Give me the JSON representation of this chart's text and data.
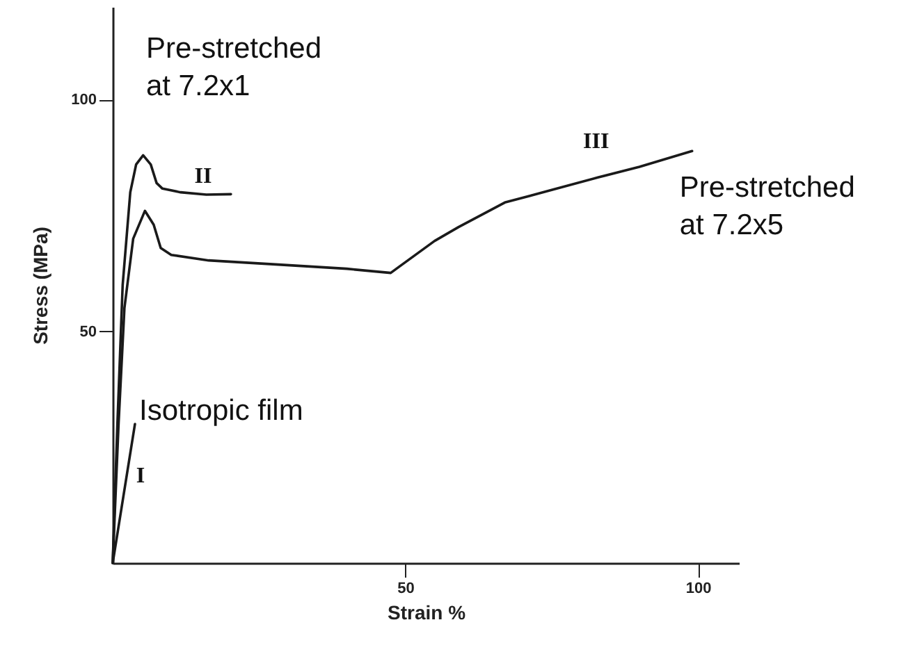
{
  "chart_data": {
    "type": "line",
    "xlabel": "Strain %",
    "ylabel": "Stress (MPa)",
    "xlim": [
      0,
      107
    ],
    "ylim": [
      0,
      120
    ],
    "xticks": [
      50,
      100
    ],
    "yticks": [
      50,
      100
    ],
    "grid": false,
    "marker": "none",
    "line_style": "solid",
    "series": [
      {
        "name": "I",
        "color": "#1a1a1a",
        "x": [
          0,
          3.8
        ],
        "values": [
          0,
          30
        ]
      },
      {
        "name": "II",
        "color": "#1a1a1a",
        "x": [
          0,
          0.8,
          1.7,
          3,
          4,
          5.2,
          6.5,
          7.5,
          8.5,
          11.6,
          16,
          20.2
        ],
        "values": [
          0,
          30,
          60,
          80,
          86,
          88,
          86,
          82,
          80.8,
          80,
          79.5,
          79.6
        ]
      },
      {
        "name": "III",
        "color": "#1a1a1a",
        "x": [
          0,
          1,
          2,
          3.5,
          5.5,
          7,
          8.2,
          10,
          16.4,
          28.3,
          40,
          47.5,
          49,
          55,
          59.1,
          67,
          75,
          82.9,
          90,
          99
        ],
        "values": [
          0,
          30,
          55,
          70,
          76,
          73,
          68,
          66.5,
          65.3,
          64.4,
          63.5,
          62.6,
          64,
          69.5,
          72.5,
          77.8,
          80.5,
          83.2,
          85.5,
          88.9
        ]
      }
    ],
    "annotations": [
      "Isotropic film",
      "Pre-stretched\nat 7.2x1",
      "Pre-stretched\nat 7.2x5"
    ]
  }
}
